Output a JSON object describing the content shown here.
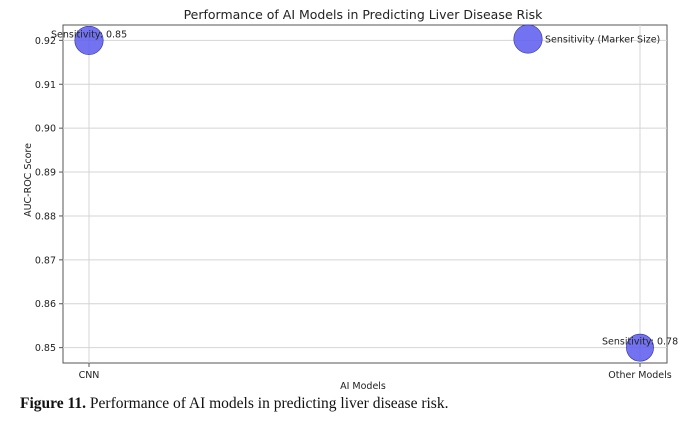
{
  "figure": {
    "caption_label": "Figure 11.",
    "caption_text": " Performance of AI models in predicting liver disease risk."
  },
  "chart_data": {
    "type": "scatter",
    "title": "Performance of AI Models in Predicting Liver Disease Risk",
    "xlabel": "AI Models",
    "ylabel": "AUC-ROC Score",
    "categories": [
      "CNN",
      "Other Models"
    ],
    "y_ticks": [
      0.85,
      0.86,
      0.87,
      0.88,
      0.89,
      0.9,
      0.91,
      0.92
    ],
    "y_tick_labels": [
      "0.85",
      "0.86",
      "0.87",
      "0.88",
      "0.89",
      "0.90",
      "0.91",
      "0.92"
    ],
    "ylim": [
      0.8465,
      0.9235
    ],
    "grid": true,
    "legend_position": "top-right",
    "legend_label": "Sensitivity (Marker Size)",
    "marker_color": "#5b5bf0",
    "points": [
      {
        "category": "CNN",
        "auc": 0.92,
        "sensitivity": 0.85,
        "label": "Sensitivity: 0.85"
      },
      {
        "category": "Other Models",
        "auc": 0.85,
        "sensitivity": 0.78,
        "label": "Sensitivity: 0.78"
      }
    ]
  }
}
